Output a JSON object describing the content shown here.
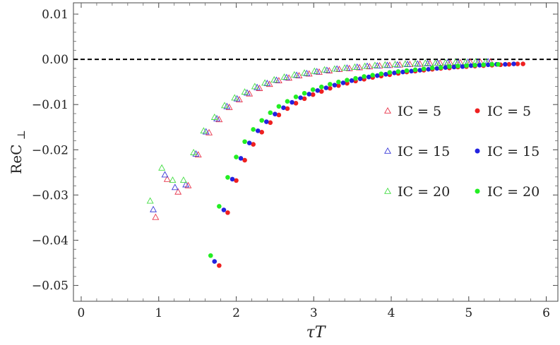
{
  "chart_data": {
    "type": "scatter",
    "xlabel": "τT",
    "ylabel_main": "ReC",
    "ylabel_sub": "⊥",
    "xlim": [
      -0.1,
      6.15
    ],
    "ylim": [
      -0.0535,
      0.0125
    ],
    "xticks": [
      0,
      1,
      2,
      3,
      4,
      5,
      6
    ],
    "yticks": [
      0.01,
      0.0,
      -0.01,
      -0.02,
      -0.03,
      -0.04,
      -0.05
    ],
    "ytick_labels": [
      "0.01",
      "0.00",
      "−0.01",
      "−0.02",
      "−0.03",
      "−0.04",
      "−0.05"
    ],
    "xtick_labels": [
      "0",
      "1",
      "2",
      "3",
      "4",
      "5",
      "6"
    ],
    "reference_line": {
      "y": 0,
      "style": "dashed",
      "color": "#000000"
    },
    "legend_position": "right",
    "series": [
      {
        "name": "IC = 5",
        "marker": "triangle-open",
        "color": "#e8344a",
        "x": [
          0.96,
          1.11,
          1.25,
          1.38,
          1.51,
          1.65,
          1.78,
          1.91,
          2.04,
          2.17,
          2.3,
          2.43,
          2.55,
          2.68,
          2.81,
          2.94,
          3.07,
          3.2,
          3.33,
          3.46,
          3.59,
          3.72,
          3.85,
          3.98,
          4.11,
          4.24,
          4.37,
          4.5,
          4.63,
          4.76,
          4.89,
          5.02,
          5.15,
          5.28
        ],
        "y": [
          -0.0349,
          -0.0265,
          -0.0293,
          -0.0279,
          -0.0211,
          -0.0162,
          -0.0133,
          -0.0106,
          -0.0089,
          -0.0076,
          -0.0064,
          -0.0055,
          -0.0047,
          -0.0041,
          -0.0036,
          -0.0032,
          -0.0028,
          -0.0025,
          -0.0022,
          -0.002,
          -0.0018,
          -0.0016,
          -0.0014,
          -0.0013,
          -0.0012,
          -0.0011,
          -0.001,
          -0.0009,
          -0.0008,
          -0.0008,
          -0.0007,
          -0.0006,
          -0.0006,
          -0.0005
        ]
      },
      {
        "name": "IC = 15",
        "marker": "triangle-open",
        "color": "#3a3ad8",
        "x": [
          0.93,
          1.08,
          1.21,
          1.35,
          1.48,
          1.61,
          1.75,
          1.88,
          2.01,
          2.14,
          2.27,
          2.4,
          2.52,
          2.65,
          2.78,
          2.91,
          3.04,
          3.17,
          3.3,
          3.43,
          3.56,
          3.69,
          3.82,
          3.95,
          4.08,
          4.21,
          4.34,
          4.47,
          4.6,
          4.73,
          4.86,
          4.99,
          5.12,
          5.25
        ],
        "y": [
          -0.0332,
          -0.0255,
          -0.0283,
          -0.0277,
          -0.0209,
          -0.016,
          -0.0131,
          -0.0104,
          -0.0087,
          -0.0074,
          -0.0062,
          -0.0053,
          -0.0046,
          -0.004,
          -0.0035,
          -0.0031,
          -0.0027,
          -0.0024,
          -0.0021,
          -0.0019,
          -0.0017,
          -0.0015,
          -0.0014,
          -0.0013,
          -0.0012,
          -0.0011,
          -0.001,
          -0.0009,
          -0.0008,
          -0.0007,
          -0.0007,
          -0.0006,
          -0.0006,
          -0.0005
        ]
      },
      {
        "name": "IC = 20",
        "marker": "triangle-open",
        "color": "#44dd44",
        "x": [
          0.89,
          1.04,
          1.18,
          1.32,
          1.45,
          1.58,
          1.72,
          1.85,
          1.98,
          2.11,
          2.24,
          2.37,
          2.49,
          2.62,
          2.75,
          2.88,
          3.01,
          3.14,
          3.27,
          3.4,
          3.53,
          3.66,
          3.79,
          3.92,
          4.05,
          4.18,
          4.31,
          4.44,
          4.57,
          4.7,
          4.83,
          4.96,
          5.09,
          5.22
        ],
        "y": [
          -0.0313,
          -0.024,
          -0.0267,
          -0.0267,
          -0.0206,
          -0.0158,
          -0.0128,
          -0.0102,
          -0.0085,
          -0.0072,
          -0.006,
          -0.0052,
          -0.0045,
          -0.0039,
          -0.0034,
          -0.003,
          -0.0026,
          -0.0023,
          -0.0021,
          -0.0019,
          -0.0017,
          -0.0015,
          -0.0013,
          -0.0012,
          -0.0011,
          -0.001,
          -0.0009,
          -0.0008,
          -0.0008,
          -0.0007,
          -0.0006,
          -0.0006,
          -0.0005,
          -0.0005
        ]
      },
      {
        "name": "IC = 5",
        "marker": "dot",
        "color": "#ee2020",
        "x": [
          1.78,
          1.89,
          2.0,
          2.11,
          2.22,
          2.33,
          2.44,
          2.55,
          2.66,
          2.77,
          2.88,
          2.99,
          3.1,
          3.21,
          3.32,
          3.43,
          3.54,
          3.65,
          3.76,
          3.87,
          3.98,
          4.09,
          4.2,
          4.31,
          4.42,
          4.53,
          4.64,
          4.75,
          4.86,
          4.97,
          5.08,
          5.19,
          5.3,
          5.41,
          5.52,
          5.63,
          5.7
        ],
        "y": [
          -0.0456,
          -0.0339,
          -0.0268,
          -0.0223,
          -0.0188,
          -0.0161,
          -0.014,
          -0.0123,
          -0.0109,
          -0.0097,
          -0.0087,
          -0.0078,
          -0.0071,
          -0.0064,
          -0.0058,
          -0.0053,
          -0.0048,
          -0.0044,
          -0.004,
          -0.0037,
          -0.0034,
          -0.0031,
          -0.0028,
          -0.0026,
          -0.0024,
          -0.0022,
          -0.002,
          -0.0019,
          -0.0017,
          -0.0016,
          -0.0015,
          -0.0014,
          -0.0013,
          -0.0012,
          -0.0011,
          -0.001,
          -0.001
        ]
      },
      {
        "name": "IC = 15",
        "marker": "dot",
        "color": "#2222e0",
        "x": [
          1.72,
          1.84,
          1.95,
          2.06,
          2.17,
          2.28,
          2.39,
          2.5,
          2.61,
          2.72,
          2.83,
          2.94,
          3.05,
          3.16,
          3.27,
          3.38,
          3.49,
          3.6,
          3.71,
          3.82,
          3.93,
          4.04,
          4.15,
          4.26,
          4.37,
          4.48,
          4.59,
          4.7,
          4.81,
          4.92,
          5.03,
          5.14,
          5.25,
          5.36,
          5.47,
          5.58
        ],
        "y": [
          -0.0447,
          -0.0333,
          -0.0265,
          -0.0219,
          -0.0185,
          -0.0158,
          -0.0138,
          -0.0121,
          -0.0107,
          -0.0095,
          -0.0085,
          -0.0077,
          -0.0069,
          -0.0063,
          -0.0057,
          -0.0052,
          -0.0047,
          -0.0043,
          -0.0039,
          -0.0036,
          -0.0033,
          -0.003,
          -0.0028,
          -0.0026,
          -0.0024,
          -0.0022,
          -0.002,
          -0.0018,
          -0.0017,
          -0.0016,
          -0.0014,
          -0.0013,
          -0.0012,
          -0.0011,
          -0.0011,
          -0.001
        ]
      },
      {
        "name": "IC = 20",
        "marker": "dot",
        "color": "#22ee22",
        "x": [
          1.67,
          1.78,
          1.89,
          2.0,
          2.11,
          2.22,
          2.33,
          2.44,
          2.55,
          2.66,
          2.77,
          2.88,
          2.99,
          3.1,
          3.21,
          3.32,
          3.43,
          3.54,
          3.65,
          3.76,
          3.87,
          3.98,
          4.09,
          4.2,
          4.31,
          4.42,
          4.53,
          4.64,
          4.75,
          4.86,
          4.97,
          5.08,
          5.19,
          5.3,
          5.38
        ],
        "y": [
          -0.0434,
          -0.0325,
          -0.0261,
          -0.0216,
          -0.0182,
          -0.0155,
          -0.0135,
          -0.0118,
          -0.0104,
          -0.0093,
          -0.0083,
          -0.0075,
          -0.0067,
          -0.0061,
          -0.0055,
          -0.005,
          -0.0046,
          -0.0042,
          -0.0038,
          -0.0035,
          -0.0032,
          -0.0029,
          -0.0027,
          -0.0025,
          -0.0023,
          -0.0021,
          -0.0019,
          -0.0018,
          -0.0016,
          -0.0015,
          -0.0014,
          -0.0013,
          -0.0012,
          -0.0011,
          -0.0011
        ]
      }
    ]
  }
}
